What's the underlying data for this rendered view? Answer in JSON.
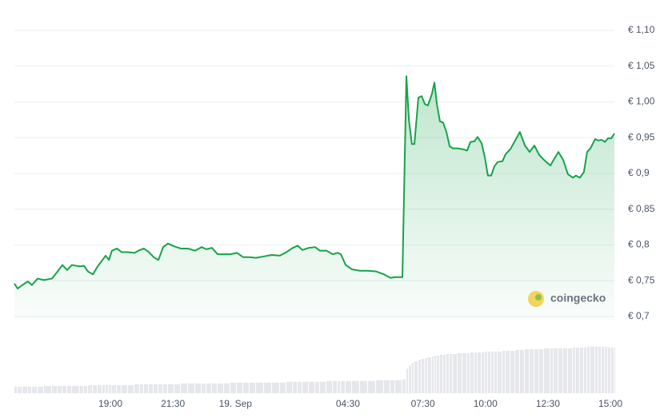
{
  "chart_data": {
    "type": "line",
    "watermark": "coingecko",
    "x": [
      0.16,
      0.29,
      0.48,
      0.7,
      0.86,
      1.09,
      1.34,
      1.66,
      1.89,
      2.08,
      2.27,
      2.46,
      2.78,
      2.94,
      3.1,
      3.3,
      3.49,
      3.68,
      3.81,
      3.94,
      4.06,
      4.26,
      4.45,
      4.7,
      4.96,
      5.18,
      5.34,
      5.54,
      5.73,
      5.92,
      6.11,
      6.3,
      6.56,
      6.82,
      7.1,
      7.39,
      7.65,
      7.84,
      8.06,
      8.29,
      8.54,
      8.8,
      9.06,
      9.31,
      9.57,
      9.82,
      10.14,
      10.46,
      10.78,
      11.04,
      11.3,
      11.49,
      11.68,
      11.94,
      12.19,
      12.38,
      12.64,
      12.9,
      13.09,
      13.22,
      13.41,
      13.66,
      13.98,
      14.3,
      14.62,
      14.94,
      15.2,
      15.39,
      15.68,
      15.84,
      15.94,
      16.06,
      16.16,
      16.32,
      16.45,
      16.58,
      16.7,
      16.86,
      16.96,
      17.06,
      17.18,
      17.31,
      17.44,
      17.57,
      17.7,
      17.89,
      18.08,
      18.27,
      18.4,
      18.56,
      18.69,
      18.85,
      18.98,
      19.1,
      19.23,
      19.36,
      19.49,
      19.68,
      19.81,
      20.0,
      20.19,
      20.38,
      20.58,
      20.77,
      20.96,
      21.15,
      21.34,
      21.6,
      21.73,
      21.92,
      22.11,
      22.3,
      22.5,
      22.62,
      22.78,
      22.94,
      23.07,
      23.2,
      23.39,
      23.52,
      23.65,
      23.78,
      23.9,
      24.03,
      24.16
    ],
    "series": [
      {
        "color": "#16a34a",
        "values": [
          0.746,
          0.739,
          0.744,
          0.749,
          0.744,
          0.753,
          0.751,
          0.753,
          0.763,
          0.772,
          0.765,
          0.772,
          0.77,
          0.771,
          0.763,
          0.759,
          0.77,
          0.779,
          0.785,
          0.779,
          0.792,
          0.795,
          0.79,
          0.79,
          0.789,
          0.793,
          0.795,
          0.79,
          0.783,
          0.779,
          0.797,
          0.802,
          0.798,
          0.795,
          0.795,
          0.792,
          0.797,
          0.794,
          0.796,
          0.787,
          0.787,
          0.787,
          0.789,
          0.783,
          0.783,
          0.782,
          0.784,
          0.786,
          0.785,
          0.79,
          0.796,
          0.799,
          0.793,
          0.796,
          0.797,
          0.792,
          0.792,
          0.787,
          0.789,
          0.787,
          0.772,
          0.766,
          0.764,
          0.764,
          0.763,
          0.759,
          0.754,
          0.755,
          0.755,
          1.036,
          0.975,
          0.941,
          0.941,
          1.006,
          1.008,
          0.997,
          0.995,
          1.011,
          1.027,
          0.997,
          0.973,
          0.971,
          0.958,
          0.938,
          0.935,
          0.935,
          0.934,
          0.932,
          0.944,
          0.945,
          0.951,
          0.942,
          0.922,
          0.897,
          0.897,
          0.91,
          0.916,
          0.917,
          0.927,
          0.934,
          0.946,
          0.958,
          0.939,
          0.93,
          0.939,
          0.926,
          0.919,
          0.911,
          0.919,
          0.93,
          0.919,
          0.899,
          0.894,
          0.897,
          0.894,
          0.902,
          0.93,
          0.935,
          0.948,
          0.946,
          0.947,
          0.944,
          0.949,
          0.949,
          0.956
        ]
      },
      {
        "color": "#e5e7eb",
        "axis": "y2",
        "values": [
          8,
          8,
          8,
          8,
          8,
          8,
          9,
          9,
          9,
          9,
          9,
          9,
          9,
          9,
          10,
          10,
          10,
          10,
          10,
          10,
          10,
          10,
          10,
          10,
          11,
          11,
          11,
          11,
          11,
          11,
          11,
          11,
          11,
          12,
          12,
          12,
          12,
          12,
          12,
          12,
          12,
          13,
          13,
          13,
          13,
          13,
          13,
          13,
          13,
          14,
          14,
          14,
          14,
          14,
          14,
          14,
          15,
          15,
          15,
          15,
          15,
          15,
          15,
          15,
          16,
          16,
          16,
          16,
          17,
          30,
          34,
          37,
          39,
          41,
          42,
          43,
          44,
          45,
          46,
          46,
          47,
          47,
          48,
          48,
          48,
          49,
          49,
          49,
          50,
          50,
          50,
          50,
          51,
          51,
          51,
          51,
          51,
          52,
          52,
          52,
          53,
          53,
          54,
          54,
          54,
          54,
          55,
          55,
          55,
          55,
          55,
          55,
          56,
          56,
          56,
          56,
          57,
          57,
          57,
          57,
          57,
          57,
          56,
          56,
          56
        ]
      }
    ],
    "xlim": [
      0.16,
      24.16
    ],
    "xticks": [
      {
        "value": 4,
        "label": "19:00"
      },
      {
        "value": 6.5,
        "label": "21:30"
      },
      {
        "value": 9,
        "label": "19. Sep"
      },
      {
        "value": 13.5,
        "label": "04:30"
      },
      {
        "value": 16.5,
        "label": "07:30"
      },
      {
        "value": 19,
        "label": "10:00"
      },
      {
        "value": 21.5,
        "label": "12:30"
      },
      {
        "value": 24,
        "label": "15:00"
      }
    ],
    "ylim": [
      0.7,
      1.1
    ],
    "yticks": [
      {
        "value": 0.7,
        "label": "€ 0,7"
      },
      {
        "value": 0.75,
        "label": "€ 0,75"
      },
      {
        "value": 0.8,
        "label": "€ 0,8"
      },
      {
        "value": 0.85,
        "label": "€ 0,85"
      },
      {
        "value": 0.9,
        "label": "€ 0,9"
      },
      {
        "value": 0.95,
        "label": "€ 0,95"
      },
      {
        "value": 1.0,
        "label": "€ 1,00"
      },
      {
        "value": 1.05,
        "label": "€ 1,05"
      },
      {
        "value": 1.1,
        "label": "€ 1,10"
      }
    ],
    "y2lim": [
      0,
      90
    ],
    "grid": true
  }
}
